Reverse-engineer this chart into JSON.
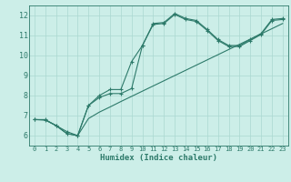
{
  "xlabel": "Humidex (Indice chaleur)",
  "bg_color": "#cceee8",
  "grid_color": "#aad8d0",
  "line_color": "#2d7a6a",
  "xlim": [
    -0.5,
    23.5
  ],
  "ylim": [
    5.5,
    12.5
  ],
  "xticks": [
    0,
    1,
    2,
    3,
    4,
    5,
    6,
    7,
    8,
    9,
    10,
    11,
    12,
    13,
    14,
    15,
    16,
    17,
    18,
    19,
    20,
    21,
    22,
    23
  ],
  "yticks": [
    6,
    7,
    8,
    9,
    10,
    11,
    12
  ],
  "line1_x": [
    0,
    1,
    2,
    3,
    4,
    5,
    6,
    7,
    8,
    9,
    10,
    11,
    12,
    13,
    14,
    15,
    16,
    17,
    18,
    19,
    20,
    21,
    22,
    23
  ],
  "line1_y": [
    6.8,
    6.8,
    6.5,
    6.2,
    6.0,
    7.5,
    8.0,
    8.3,
    8.3,
    9.7,
    10.5,
    11.6,
    11.65,
    12.1,
    11.85,
    11.75,
    11.3,
    10.8,
    10.5,
    10.5,
    10.8,
    11.1,
    11.8,
    11.85
  ],
  "line2_x": [
    0,
    1,
    2,
    3,
    4,
    5,
    6,
    7,
    8,
    9,
    10,
    11,
    12,
    13,
    14,
    15,
    16,
    17,
    18,
    19,
    20,
    21,
    22,
    23
  ],
  "line2_y": [
    6.8,
    6.78,
    6.5,
    6.1,
    6.0,
    7.5,
    7.9,
    8.1,
    8.1,
    8.35,
    10.5,
    11.55,
    11.6,
    12.05,
    11.8,
    11.7,
    11.25,
    10.75,
    10.45,
    10.45,
    10.75,
    11.05,
    11.75,
    11.8
  ],
  "line3_x": [
    0,
    1,
    2,
    3,
    4,
    5,
    6,
    7,
    8,
    9,
    10,
    11,
    12,
    13,
    14,
    15,
    16,
    17,
    18,
    19,
    20,
    21,
    22,
    23
  ],
  "line3_y": [
    6.8,
    6.78,
    6.5,
    6.1,
    6.0,
    6.85,
    7.17,
    7.43,
    7.7,
    7.96,
    8.22,
    8.48,
    8.74,
    9.0,
    9.26,
    9.52,
    9.78,
    10.04,
    10.3,
    10.56,
    10.82,
    11.08,
    11.34,
    11.6
  ]
}
